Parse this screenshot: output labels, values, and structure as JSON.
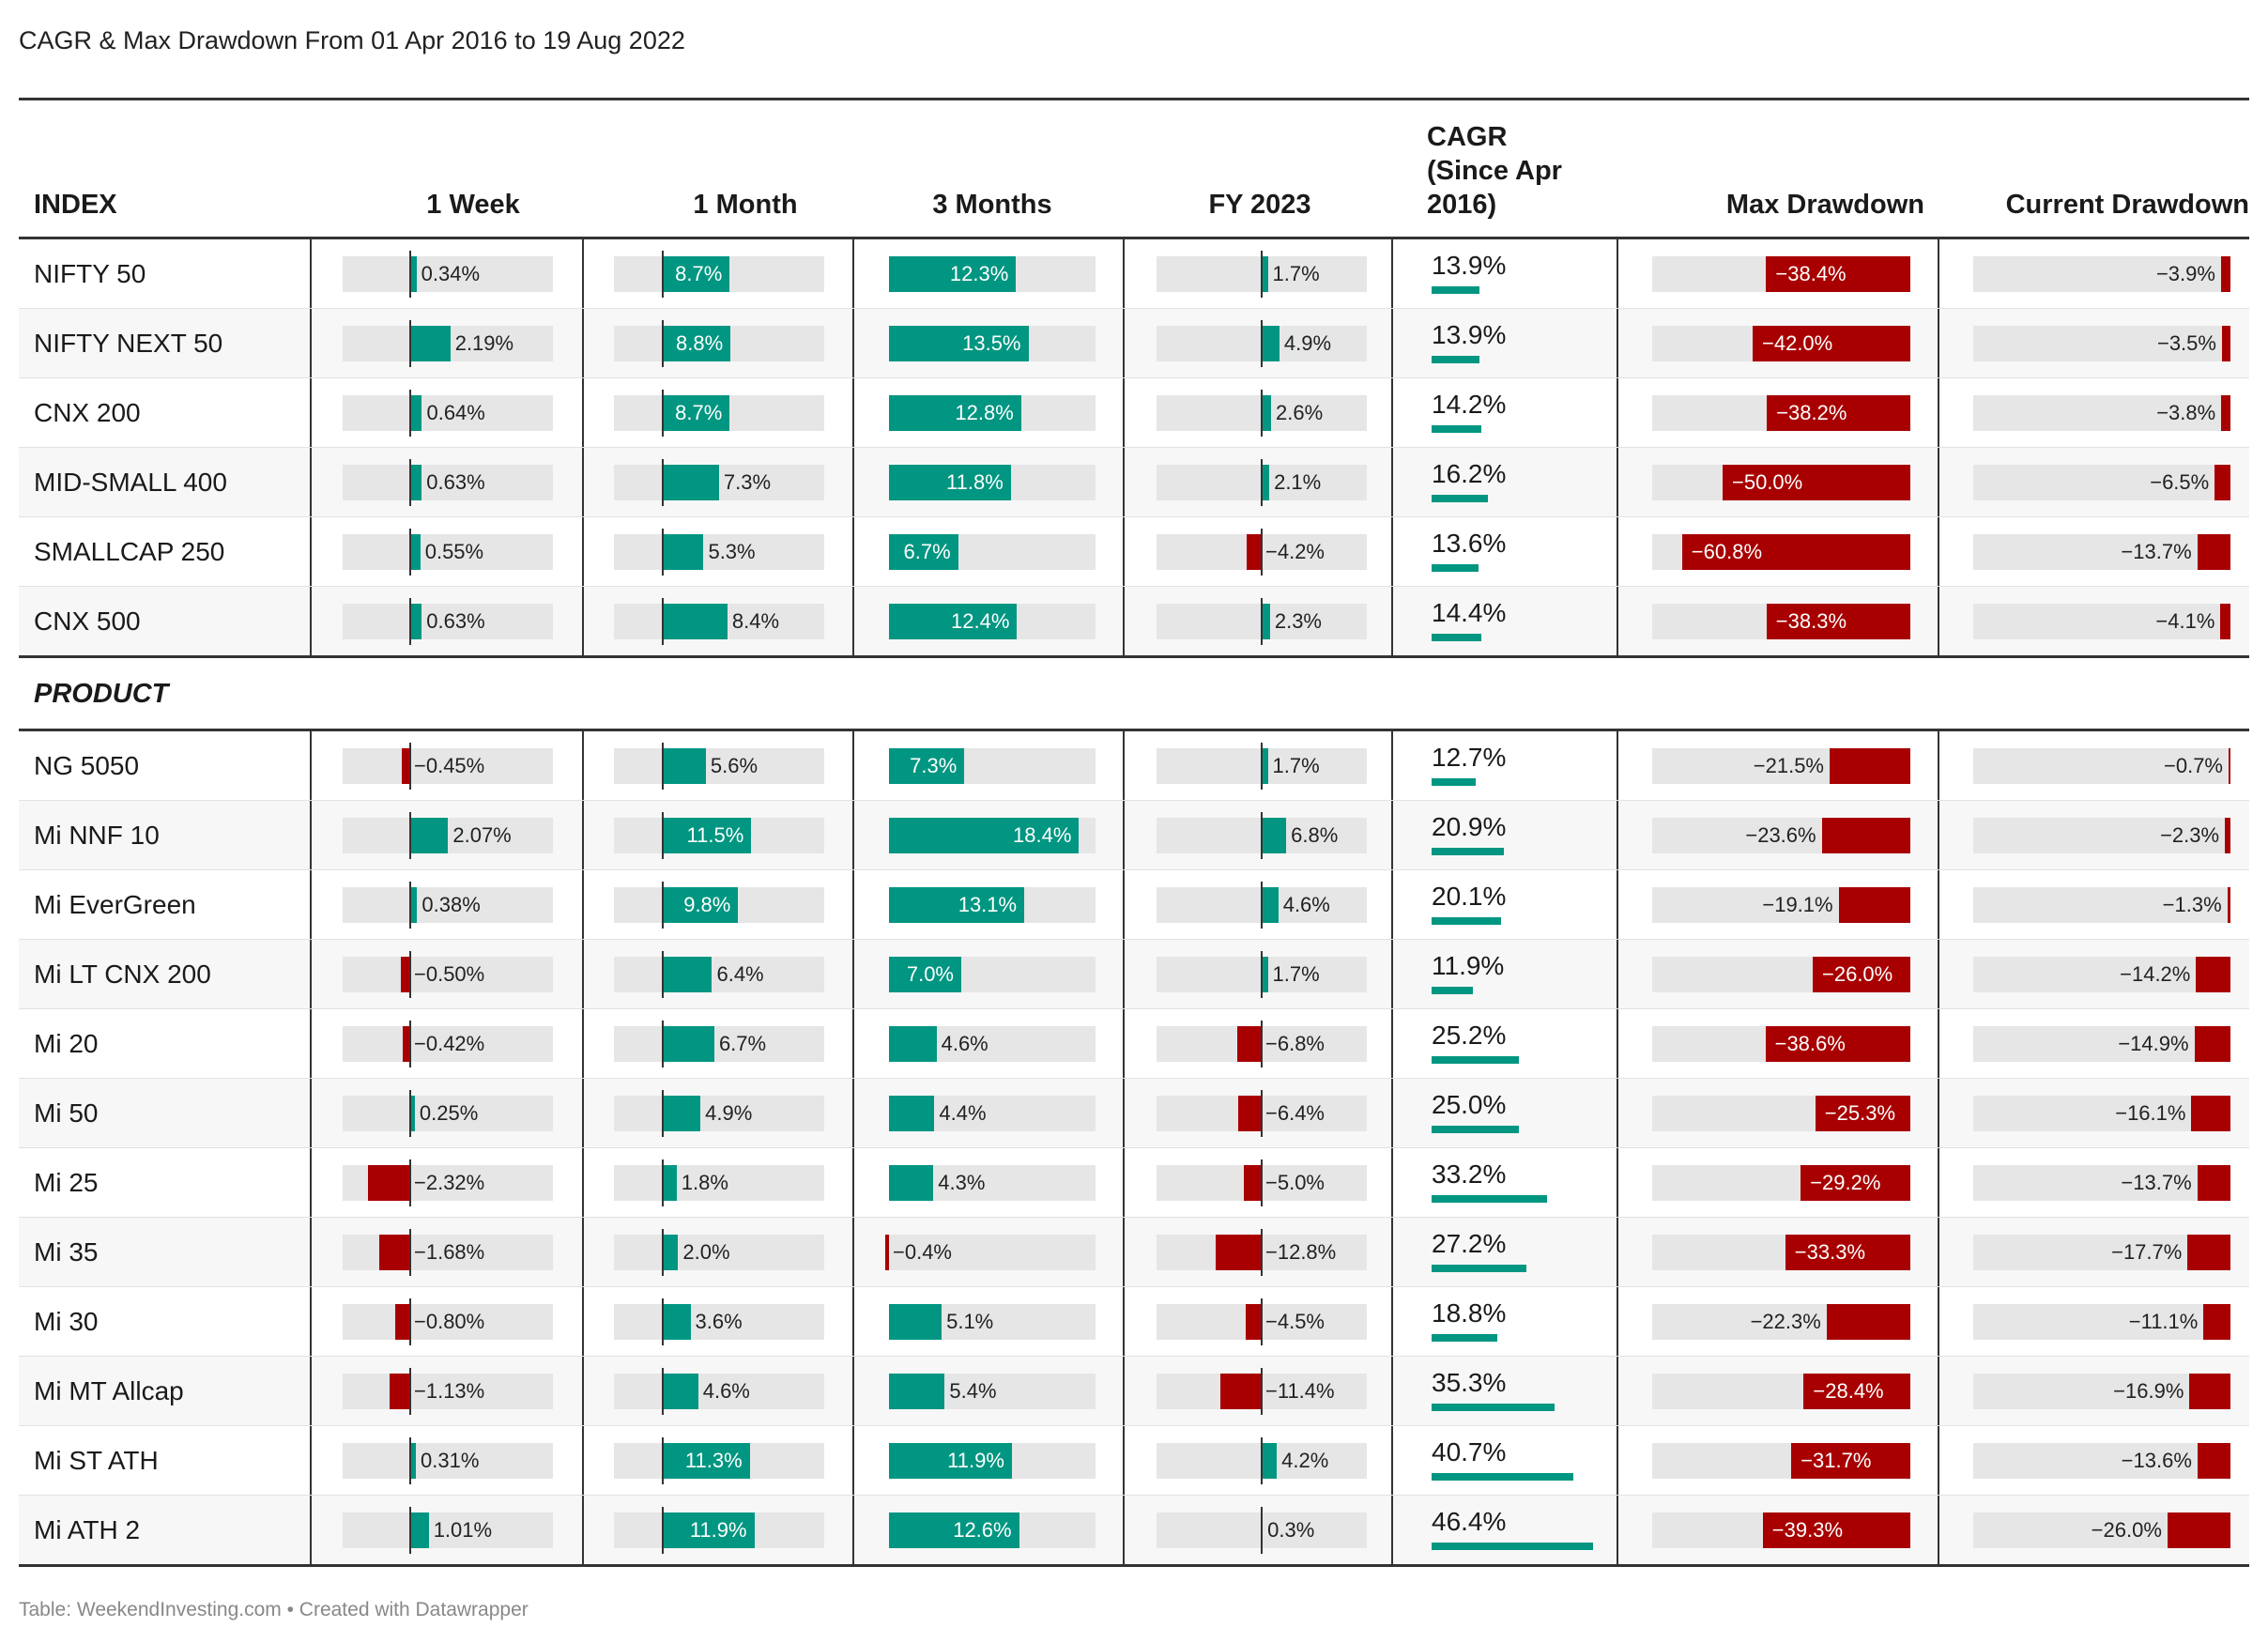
{
  "title": "CAGR & Max Drawdown From 01 Apr 2016 to 19 Aug 2022",
  "footer": "Table: WeekendInvesting.com • Created with Datawrapper",
  "colors": {
    "positive": "#009681",
    "negative": "#A80000",
    "track": "#e6e6e6"
  },
  "chart_data": {
    "type": "table",
    "columns": [
      "INDEX",
      "1 Week",
      "1 Month",
      "3 Months",
      "FY 2023",
      "CAGR (Since Apr 2016)",
      "Max Drawdown",
      "Current Drawdown"
    ],
    "column_headers": {
      "index": "INDEX",
      "week": "1 Week",
      "month": "1 Month",
      "three_months": "3 Months",
      "fy": "FY 2023",
      "cagr": [
        "CAGR",
        "(Since Apr",
        "2016)"
      ],
      "maxdd": "Max Drawdown",
      "curdd": "Current Drawdown"
    },
    "sections": [
      {
        "label": "",
        "rows": [
          {
            "name": "NIFTY 50",
            "week": 0.34,
            "month": 8.7,
            "m3": 12.3,
            "fy": 1.7,
            "cagr": 13.9,
            "maxdd": -38.4,
            "curdd": -3.9
          },
          {
            "name": "NIFTY NEXT 50",
            "week": 2.19,
            "month": 8.8,
            "m3": 13.5,
            "fy": 4.9,
            "cagr": 13.9,
            "maxdd": -42.0,
            "curdd": -3.5
          },
          {
            "name": "CNX 200",
            "week": 0.64,
            "month": 8.7,
            "m3": 12.8,
            "fy": 2.6,
            "cagr": 14.2,
            "maxdd": -38.2,
            "curdd": -3.8
          },
          {
            "name": "MID-SMALL 400",
            "week": 0.63,
            "month": 7.3,
            "m3": 11.8,
            "fy": 2.1,
            "cagr": 16.2,
            "maxdd": -50.0,
            "curdd": -6.5
          },
          {
            "name": "SMALLCAP 250",
            "week": 0.55,
            "month": 5.3,
            "m3": 6.7,
            "fy": -4.2,
            "cagr": 13.6,
            "maxdd": -60.8,
            "curdd": -13.7
          },
          {
            "name": "CNX 500",
            "week": 0.63,
            "month": 8.4,
            "m3": 12.4,
            "fy": 2.3,
            "cagr": 14.4,
            "maxdd": -38.3,
            "curdd": -4.1
          }
        ]
      },
      {
        "label": "PRODUCT",
        "rows": [
          {
            "name": "NG 5050",
            "week": -0.45,
            "month": 5.6,
            "m3": 7.3,
            "fy": 1.7,
            "cagr": 12.7,
            "maxdd": -21.5,
            "curdd": -0.7
          },
          {
            "name": "Mi NNF 10",
            "week": 2.07,
            "month": 11.5,
            "m3": 18.4,
            "fy": 6.8,
            "cagr": 20.9,
            "maxdd": -23.6,
            "curdd": -2.3
          },
          {
            "name": "Mi EverGreen",
            "week": 0.38,
            "month": 9.8,
            "m3": 13.1,
            "fy": 4.6,
            "cagr": 20.1,
            "maxdd": -19.1,
            "curdd": -1.3
          },
          {
            "name": "Mi LT CNX 200",
            "week": -0.5,
            "month": 6.4,
            "m3": 7.0,
            "fy": 1.7,
            "cagr": 11.9,
            "maxdd": -26.0,
            "curdd": -14.2
          },
          {
            "name": "Mi 20",
            "week": -0.42,
            "month": 6.7,
            "m3": 4.6,
            "fy": -6.8,
            "cagr": 25.2,
            "maxdd": -38.6,
            "curdd": -14.9
          },
          {
            "name": "Mi 50",
            "week": 0.25,
            "month": 4.9,
            "m3": 4.4,
            "fy": -6.4,
            "cagr": 25.0,
            "maxdd": -25.3,
            "curdd": -16.1
          },
          {
            "name": "Mi 25",
            "week": -2.32,
            "month": 1.8,
            "m3": 4.3,
            "fy": -5.0,
            "cagr": 33.2,
            "maxdd": -29.2,
            "curdd": -13.7
          },
          {
            "name": "Mi 35",
            "week": -1.68,
            "month": 2.0,
            "m3": -0.4,
            "fy": -12.8,
            "cagr": 27.2,
            "maxdd": -33.3,
            "curdd": -17.7
          },
          {
            "name": "Mi 30",
            "week": -0.8,
            "month": 3.6,
            "m3": 5.1,
            "fy": -4.5,
            "cagr": 18.8,
            "maxdd": -22.3,
            "curdd": -11.1
          },
          {
            "name": "Mi MT Allcap",
            "week": -1.13,
            "month": 4.6,
            "m3": 5.4,
            "fy": -11.4,
            "cagr": 35.3,
            "maxdd": -28.4,
            "curdd": -16.9
          },
          {
            "name": "Mi ST ATH",
            "week": 0.31,
            "month": 11.3,
            "m3": 11.9,
            "fy": 4.2,
            "cagr": 40.7,
            "maxdd": -31.7,
            "curdd": -13.6
          },
          {
            "name": "Mi ATH 2",
            "week": 1.01,
            "month": 11.9,
            "m3": 12.6,
            "fy": 0.3,
            "cagr": 46.4,
            "maxdd": -39.3,
            "curdd": -26.0
          }
        ]
      }
    ]
  }
}
